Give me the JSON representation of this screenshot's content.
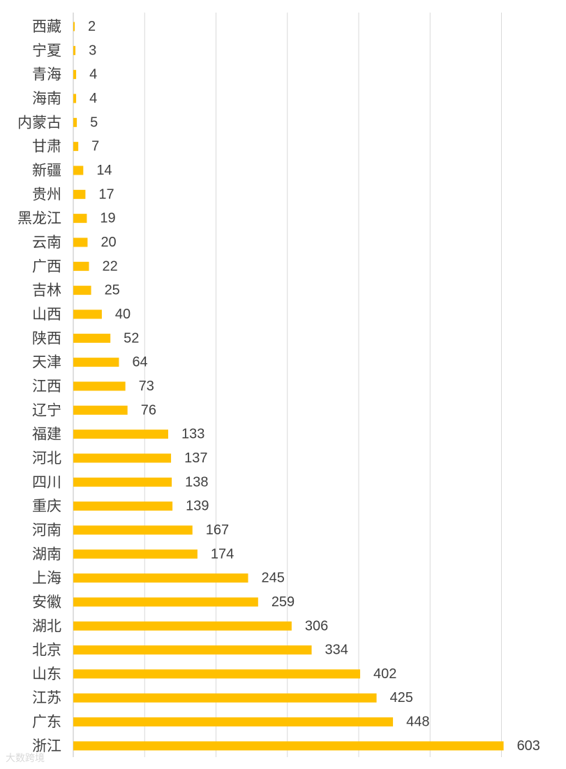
{
  "chart_data": {
    "type": "bar",
    "orientation": "horizontal",
    "title": "",
    "xlabel": "",
    "ylabel": "",
    "xlim": [
      0,
      600
    ],
    "grid": true,
    "legend": "none",
    "bar_color": "#FFC000",
    "grid_color": "#D9D9D9",
    "categories": [
      "西藏",
      "宁夏",
      "青海",
      "海南",
      "内蒙古",
      "甘肃",
      "新疆",
      "贵州",
      "黑龙江",
      "云南",
      "广西",
      "吉林",
      "山西",
      "陕西",
      "天津",
      "江西",
      "辽宁",
      "福建",
      "河北",
      "四川",
      "重庆",
      "河南",
      "湖南",
      "上海",
      "安徽",
      "湖北",
      "北京",
      "山东",
      "江苏",
      "广东",
      "浙江"
    ],
    "values": [
      2,
      3,
      4,
      4,
      5,
      7,
      14,
      17,
      19,
      20,
      22,
      25,
      40,
      52,
      64,
      73,
      76,
      133,
      137,
      138,
      139,
      167,
      174,
      245,
      259,
      306,
      334,
      402,
      425,
      448,
      603
    ]
  },
  "watermark": "大数跨境"
}
